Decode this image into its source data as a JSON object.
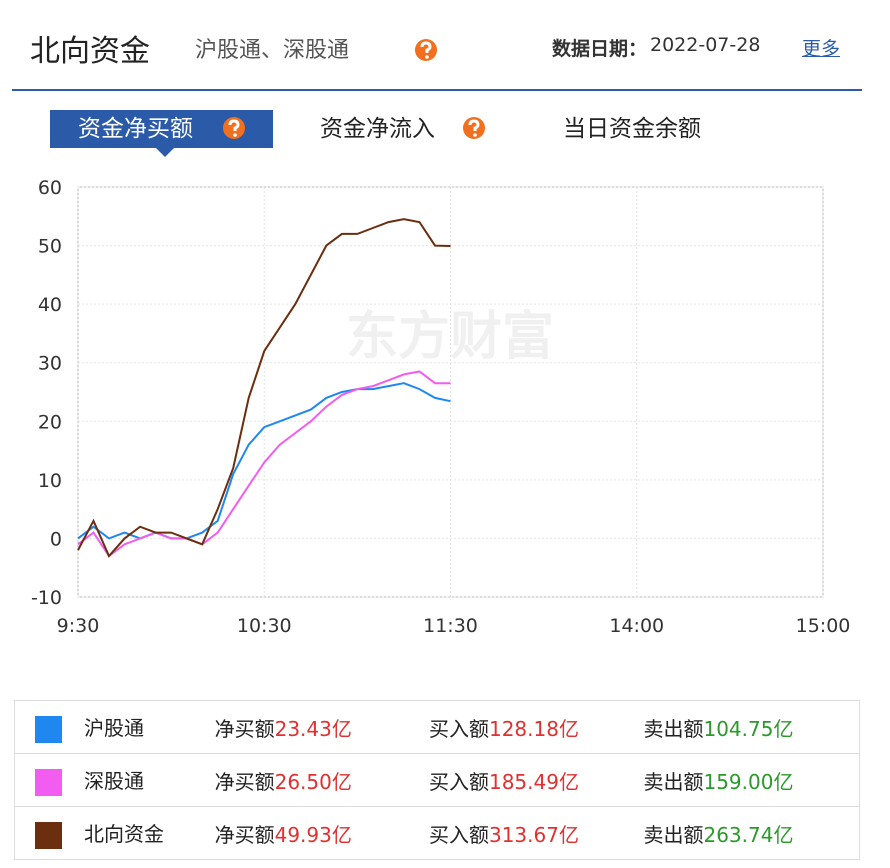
{
  "header": {
    "title": "北向资金",
    "subtitle": "沪股通、深股通",
    "date_label": "数据日期：",
    "date": "2022-07-28",
    "more": "更多"
  },
  "tabs": [
    "资金净买额",
    "资金净流入",
    "当日资金余额"
  ],
  "chart_data": {
    "type": "line",
    "watermark": "东方财富",
    "x": [
      0,
      5,
      10,
      15,
      20,
      25,
      30,
      35,
      40,
      45,
      50,
      55,
      60,
      65,
      70,
      75,
      80,
      85,
      90,
      95,
      100,
      105,
      110,
      115,
      120
    ],
    "xlim": [
      0,
      240
    ],
    "xticks": [
      {
        "value": 0,
        "label": "9:30"
      },
      {
        "value": 60,
        "label": "10:30"
      },
      {
        "value": 120,
        "label": "11:30"
      },
      {
        "value": 180,
        "label": "14:00"
      },
      {
        "value": 240,
        "label": "15:00"
      }
    ],
    "ylim": [
      -10,
      60
    ],
    "yticks": [
      -10,
      0,
      10,
      20,
      30,
      40,
      50,
      60
    ],
    "grid": true,
    "series": [
      {
        "name": "沪股通",
        "color": "#1e88f0",
        "values": [
          0,
          2,
          0,
          1,
          0,
          1,
          0,
          0,
          1,
          3,
          11,
          16,
          19,
          20,
          21,
          22,
          24,
          25,
          25.5,
          25.5,
          26,
          26.5,
          25.5,
          24,
          23.43
        ]
      },
      {
        "name": "深股通",
        "color": "#f25cf0",
        "values": [
          -1,
          1,
          -3,
          -1,
          0,
          1,
          0,
          0,
          -1,
          1,
          5,
          9,
          13,
          16,
          18,
          20,
          22.5,
          24.5,
          25.5,
          26,
          27,
          28,
          28.5,
          26.5,
          26.5
        ]
      },
      {
        "name": "北向资金",
        "color": "#6b2e0e",
        "values": [
          -2,
          3,
          -3,
          0,
          2,
          1,
          1,
          0,
          -1,
          5,
          12,
          24,
          32,
          36,
          40,
          45,
          50,
          52,
          52,
          53,
          54,
          54.5,
          54,
          50,
          49.93
        ]
      }
    ]
  },
  "summary": {
    "columns": [
      "净买额",
      "买入额",
      "卖出额"
    ],
    "rows": [
      [
        "23.43亿",
        "128.18亿",
        "104.75亿"
      ],
      [
        "26.50亿",
        "185.49亿",
        "159.00亿"
      ],
      [
        "49.93亿",
        "313.67亿",
        "263.74亿"
      ]
    ]
  }
}
